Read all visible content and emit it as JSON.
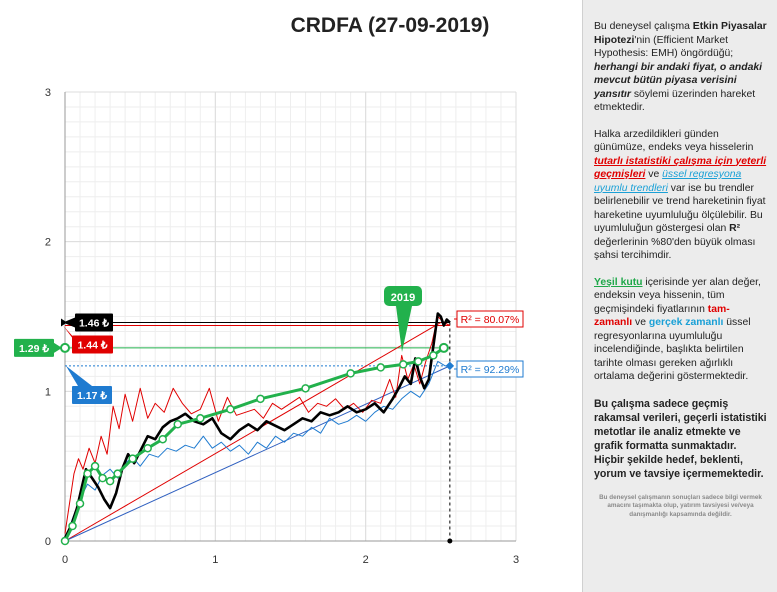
{
  "chart_data": {
    "type": "line",
    "title": "CRDFA (27-09-2019)",
    "xlim": [
      0,
      3
    ],
    "ylim": [
      0,
      3
    ],
    "x_ticks": [
      0,
      1,
      2,
      3
    ],
    "y_ticks": [
      0,
      1,
      2,
      3
    ],
    "grid": true,
    "series": [
      {
        "role": "price-black",
        "values_x": [
          0,
          0.04,
          0.08,
          0.11,
          0.14,
          0.18,
          0.22,
          0.26,
          0.3,
          0.34,
          0.38,
          0.42,
          0.46,
          0.5,
          0.55,
          0.6,
          0.65,
          0.7,
          0.75,
          0.8,
          0.86,
          0.92,
          0.98,
          1.04,
          1.1,
          1.16,
          1.22,
          1.28,
          1.34,
          1.4,
          1.46,
          1.52,
          1.58,
          1.64,
          1.7,
          1.76,
          1.82,
          1.88,
          1.94,
          2.0,
          2.06,
          2.12,
          2.18,
          2.22,
          2.26,
          2.3,
          2.33,
          2.36,
          2.39,
          2.42,
          2.45,
          2.48,
          2.5,
          2.52,
          2.54,
          2.56
        ],
        "values_y": [
          0.02,
          0.1,
          0.22,
          0.35,
          0.48,
          0.42,
          0.36,
          0.28,
          0.22,
          0.32,
          0.48,
          0.58,
          0.52,
          0.6,
          0.7,
          0.68,
          0.76,
          0.8,
          0.82,
          0.85,
          0.8,
          0.78,
          0.82,
          0.72,
          0.68,
          0.74,
          0.78,
          0.74,
          0.8,
          0.77,
          0.74,
          0.78,
          0.82,
          0.8,
          0.86,
          0.84,
          0.86,
          0.9,
          0.86,
          0.88,
          0.92,
          0.86,
          0.95,
          1.02,
          1.1,
          1.05,
          1.22,
          1.1,
          1.02,
          1.08,
          1.3,
          1.52,
          1.5,
          1.44,
          1.48,
          1.46
        ]
      },
      {
        "role": "price-red",
        "values_x": [
          0,
          0.03,
          0.06,
          0.09,
          0.12,
          0.16,
          0.2,
          0.24,
          0.28,
          0.32,
          0.36,
          0.4,
          0.45,
          0.5,
          0.55,
          0.6,
          0.66,
          0.72,
          0.78,
          0.84,
          0.9,
          0.96,
          1.02,
          1.08,
          1.14,
          1.2,
          1.26,
          1.32,
          1.38,
          1.44,
          1.5,
          1.56,
          1.62,
          1.68,
          1.74,
          1.8,
          1.86,
          1.92,
          1.98,
          2.04,
          2.1,
          2.16,
          2.2,
          2.24,
          2.28,
          2.32,
          2.36,
          2.4,
          2.44,
          2.48,
          2.52,
          2.56
        ],
        "values_y": [
          0.05,
          0.25,
          0.45,
          0.55,
          0.48,
          0.62,
          0.52,
          0.7,
          0.58,
          0.9,
          0.75,
          0.98,
          0.8,
          1.02,
          0.82,
          0.92,
          0.86,
          1.02,
          0.92,
          0.85,
          0.88,
          1.02,
          0.8,
          0.96,
          0.84,
          0.86,
          0.88,
          0.82,
          0.92,
          0.88,
          0.92,
          0.96,
          0.86,
          0.92,
          0.9,
          0.95,
          0.88,
          0.92,
          0.86,
          0.94,
          0.92,
          1.08,
          0.96,
          1.24,
          1.08,
          1.18,
          1.05,
          1.2,
          1.32,
          1.5,
          1.46,
          1.44
        ]
      },
      {
        "role": "price-blue",
        "values_x": [
          0,
          0.05,
          0.1,
          0.15,
          0.2,
          0.25,
          0.3,
          0.35,
          0.4,
          0.45,
          0.5,
          0.56,
          0.62,
          0.68,
          0.74,
          0.8,
          0.86,
          0.92,
          0.98,
          1.04,
          1.1,
          1.16,
          1.22,
          1.28,
          1.34,
          1.4,
          1.46,
          1.52,
          1.58,
          1.64,
          1.7,
          1.76,
          1.82,
          1.88,
          1.94,
          2.0,
          2.06,
          2.12,
          2.18,
          2.24,
          2.3,
          2.36,
          2.42,
          2.48,
          2.53
        ],
        "values_y": [
          0.0,
          0.15,
          0.28,
          0.38,
          0.34,
          0.44,
          0.48,
          0.42,
          0.52,
          0.56,
          0.5,
          0.58,
          0.56,
          0.62,
          0.6,
          0.64,
          0.62,
          0.7,
          0.62,
          0.66,
          0.6,
          0.64,
          0.58,
          0.66,
          0.62,
          0.7,
          0.66,
          0.72,
          0.7,
          0.76,
          0.72,
          0.82,
          0.78,
          0.8,
          0.84,
          0.8,
          0.86,
          0.9,
          0.88,
          0.95,
          1.0,
          0.96,
          1.05,
          1.2,
          1.17
        ]
      },
      {
        "role": "green-moving-average",
        "values_x": [
          0,
          0.05,
          0.1,
          0.15,
          0.2,
          0.25,
          0.3,
          0.35,
          0.45,
          0.55,
          0.65,
          0.75,
          0.9,
          1.1,
          1.3,
          1.6,
          1.9,
          2.1,
          2.25,
          2.35,
          2.45,
          2.52
        ],
        "values_y": [
          0.0,
          0.1,
          0.25,
          0.45,
          0.5,
          0.42,
          0.4,
          0.45,
          0.55,
          0.62,
          0.68,
          0.78,
          0.82,
          0.88,
          0.95,
          1.02,
          1.12,
          1.16,
          1.18,
          1.2,
          1.24,
          1.29
        ]
      }
    ],
    "trendlines": [
      {
        "color": "#e00000",
        "from": [
          0,
          0
        ],
        "to": [
          2.5,
          1.46
        ]
      },
      {
        "color": "#3060c0",
        "from": [
          0,
          0
        ],
        "to": [
          2.56,
          1.17
        ]
      }
    ],
    "reference_levels": {
      "black": 1.46,
      "red": 1.44,
      "green": 1.29,
      "blue": 1.17
    },
    "annotations": {
      "label_black": "1.46 ₺",
      "label_red": "1.44 ₺",
      "label_green": "1.29 ₺",
      "label_blue": "1.17 ₺",
      "r2_red": "R² = 80.07%",
      "r2_blue": "R² = 92.29%",
      "year_marker": "2019"
    },
    "colors": {
      "black": "#000000",
      "red": "#e00000",
      "green": "#22b14c",
      "blue": "#1f7bd0",
      "grid": "#dcdcdc"
    }
  },
  "panel": {
    "p1_a": "Bu deneysel çalışma ",
    "p1_b": "Etkin Piyasalar Hipotezi",
    "p1_c": "'nin (Efficient Market Hypothesis: EMH) öngördüğü; ",
    "p1_d": "herhangi bir andaki fiyat, o andaki mevcut bütün piyasa verisini yansıtır",
    "p1_e": " söylemi üzerinden hareket etmektedir.",
    "p2_a": "Halka arzedildikleri günden günümüze, endeks veya hisselerin ",
    "p2_b": "tutarlı istatistiki çalışma için yeterli geçmişleri",
    "p2_c": " ve ",
    "p2_d": "üssel regresyona uyumlu trendleri",
    "p2_e": " var ise bu trendler belirlenebilir ve trend hareketinin fiyat hareketine uyumluluğu ölçülebilir. Bu uyumluluğun göstergesi olan ",
    "p2_f": "R²",
    "p2_g": " değerlerinin %80'den büyük olması şahsi tercihimdir.",
    "p3_a": "Yeşil kutu",
    "p3_b": " içerisinde yer alan değer, endeksin veya hissenin, tüm geçmişindeki fiyatlarının ",
    "p3_c": "tam-zamanlı",
    "p3_d": " ve ",
    "p3_e": "gerçek zamanlı",
    "p3_f": " üssel regresyonlarına uyumluluğu incelendiğinde, başlıkta belirtilen tarihte olması gereken ağırlıklı ortalama değerini göstermektedir.",
    "p4": "Bu çalışma sadece geçmiş rakamsal verileri, geçerli istatistiki metotlar ile  analiz etmekte ve grafik formatta sunmaktadır. Hiçbir şekilde hedef, beklenti, yorum ve tavsiye içermemektedir.",
    "disclaimer": "Bu deneysel çalışmanın sonuçları sadece bilgi vermek amacını taşımakta olup, yatırım tavsiyesi ve/veya danışmanlığı kapsamında değildir."
  }
}
